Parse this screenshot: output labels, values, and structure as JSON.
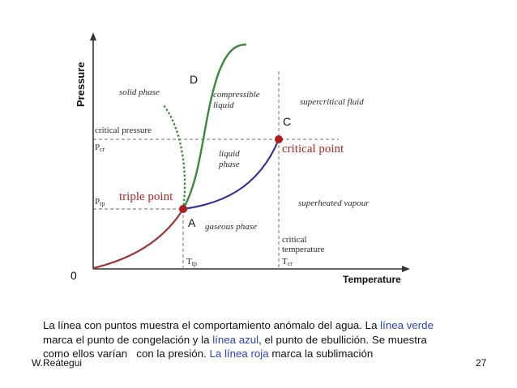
{
  "diagram": {
    "axes": {
      "y_label": "Pressure",
      "x_label": "Temperature",
      "origin_label": "0"
    },
    "points": {
      "A": "A",
      "C": "C",
      "D": "D"
    },
    "regions": {
      "solid": "solid phase",
      "compressible": [
        "compressible",
        "liquid"
      ],
      "liquid": [
        "liquid",
        "phase"
      ],
      "supercritical": "supercritical fluid",
      "superheated": "superheated vapour",
      "gaseous": "gaseous phase"
    },
    "labels": {
      "critical_pressure": "critical pressure",
      "pcr_main": "P",
      "pcr_sub": "cr",
      "ptp_main": "P",
      "ptp_sub": "tp",
      "triple_point": "triple point",
      "critical_point": "critical point",
      "critical_temperature": [
        "critical",
        "temperature"
      ],
      "ttp_main": "T",
      "ttp_sub": "tp",
      "tcr_main": "T",
      "tcr_sub": "cr"
    },
    "colors": {
      "green": "#3b8a3b",
      "blue": "#33339a",
      "red": "#9a3a3a",
      "point": "#b01c1c",
      "label_red": "#b02828",
      "axis": "#333333",
      "dash": "#888888"
    }
  },
  "caption": {
    "l1_a": "La línea con puntos muestra el comportamiento anómalo del agua. La ",
    "l1_b": "línea verde",
    "l2_a": "marca el punto de congelación y la ",
    "l2_b": "línea azul",
    "l2_c": ", el punto de ebullición. Se muestra",
    "l3_a": "como ellos varían   con la presión. ",
    "l3_b": "La línea roja",
    "l3_c": " marca la sublimación"
  },
  "footer": {
    "author": "W.Reátegui",
    "page": "27"
  }
}
